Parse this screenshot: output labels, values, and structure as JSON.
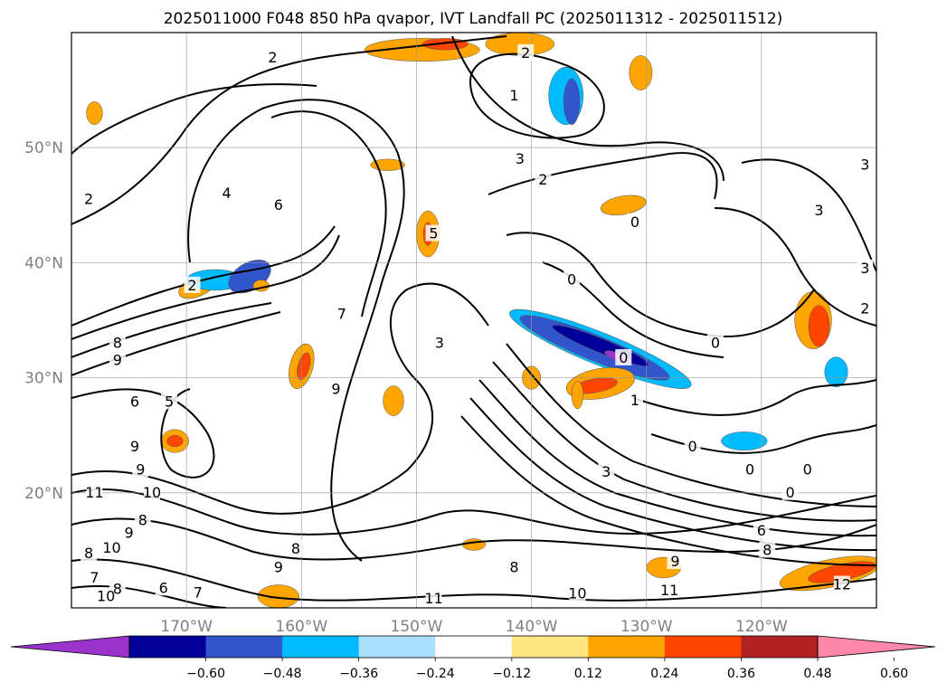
{
  "chart_data": {
    "type": "heatmap",
    "title": "2025011000 F048 850 hPa qvapor, IVT Landfall PC (2025011312 - 2025011512)",
    "projection": "map",
    "grid": true,
    "lon_range": [
      -180,
      -110
    ],
    "lat_range": [
      10,
      60
    ],
    "x_ticks": [
      {
        "value": -170,
        "label": "170°W"
      },
      {
        "value": -160,
        "label": "160°W"
      },
      {
        "value": -150,
        "label": "150°W"
      },
      {
        "value": -140,
        "label": "140°W"
      },
      {
        "value": -130,
        "label": "130°W"
      },
      {
        "value": -120,
        "label": "120°W"
      }
    ],
    "y_ticks": [
      {
        "value": 20,
        "label": "20°N"
      },
      {
        "value": 30,
        "label": "30°N"
      },
      {
        "value": 40,
        "label": "40°N"
      },
      {
        "value": 50,
        "label": "50°N"
      }
    ],
    "colorbar": {
      "orientation": "horizontal",
      "extend": "both",
      "levels": [
        -0.6,
        -0.48,
        -0.36,
        -0.24,
        -0.12,
        0.12,
        0.24,
        0.36,
        0.48,
        0.6
      ],
      "tick_labels": [
        "−0.60",
        "−0.48",
        "−0.36",
        "−0.24",
        "−0.12",
        "0.12",
        "0.24",
        "0.36",
        "0.48",
        "0.60"
      ],
      "colors": [
        "#9933cc",
        "#000099",
        "#3355cc",
        "#00bbff",
        "#aae0ff",
        "#ffffff",
        "#ffe680",
        "#ffa500",
        "#ff4500",
        "#b22222",
        "#ff88aa"
      ]
    },
    "contour_labels": [
      {
        "text": "2",
        "lon": -178.5,
        "lat": 45.5
      },
      {
        "text": "2",
        "lon": -162.5,
        "lat": 57.8
      },
      {
        "text": "2",
        "lon": -140.5,
        "lat": 58.2
      },
      {
        "text": "1",
        "lon": -141.5,
        "lat": 54.5
      },
      {
        "text": "3",
        "lon": -141.0,
        "lat": 49.0
      },
      {
        "text": "2",
        "lon": -139.0,
        "lat": 47.2
      },
      {
        "text": "4",
        "lon": -166.5,
        "lat": 46.0
      },
      {
        "text": "6",
        "lon": -162.0,
        "lat": 45.0
      },
      {
        "text": "5",
        "lon": -148.5,
        "lat": 42.5
      },
      {
        "text": "2",
        "lon": -169.5,
        "lat": 38.0
      },
      {
        "text": "7",
        "lon": -156.5,
        "lat": 35.5
      },
      {
        "text": "8",
        "lon": -176.0,
        "lat": 33.0
      },
      {
        "text": "9",
        "lon": -176.0,
        "lat": 31.5
      },
      {
        "text": "3",
        "lon": -148.0,
        "lat": 33.0
      },
      {
        "text": "9",
        "lon": -157.0,
        "lat": 29.0
      },
      {
        "text": "0",
        "lon": -136.5,
        "lat": 38.5
      },
      {
        "text": "0",
        "lon": -131.0,
        "lat": 43.5
      },
      {
        "text": "3",
        "lon": -111.0,
        "lat": 48.5
      },
      {
        "text": "3",
        "lon": -115.0,
        "lat": 44.5
      },
      {
        "text": "3",
        "lon": -111.0,
        "lat": 39.5
      },
      {
        "text": "2",
        "lon": -111.0,
        "lat": 36.0
      },
      {
        "text": "0",
        "lon": -132.0,
        "lat": 31.7
      },
      {
        "text": "0",
        "lon": -124.0,
        "lat": 33.0
      },
      {
        "text": "1",
        "lon": -131.0,
        "lat": 28.0
      },
      {
        "text": "0",
        "lon": -126.0,
        "lat": 24.0
      },
      {
        "text": "0",
        "lon": -121.0,
        "lat": 22.0
      },
      {
        "text": "0",
        "lon": -116.0,
        "lat": 22.0
      },
      {
        "text": "0",
        "lon": -117.5,
        "lat": 20.0
      },
      {
        "text": "3",
        "lon": -133.5,
        "lat": 21.8
      },
      {
        "text": "6",
        "lon": -120.0,
        "lat": 16.7
      },
      {
        "text": "8",
        "lon": -119.5,
        "lat": 15.0
      },
      {
        "text": "9",
        "lon": -127.5,
        "lat": 14.0
      },
      {
        "text": "11",
        "lon": -128.0,
        "lat": 11.5
      },
      {
        "text": "12",
        "lon": -113.0,
        "lat": 12.0
      },
      {
        "text": "10",
        "lon": -136.0,
        "lat": 11.2
      },
      {
        "text": "11",
        "lon": -148.5,
        "lat": 10.8
      },
      {
        "text": "8",
        "lon": -141.5,
        "lat": 13.5
      },
      {
        "text": "5",
        "lon": -171.5,
        "lat": 27.9
      },
      {
        "text": "6",
        "lon": -174.5,
        "lat": 27.9
      },
      {
        "text": "9",
        "lon": -174.5,
        "lat": 24.0
      },
      {
        "text": "9",
        "lon": -174.0,
        "lat": 22.0
      },
      {
        "text": "10",
        "lon": -173.0,
        "lat": 20.0
      },
      {
        "text": "11",
        "lon": -178.0,
        "lat": 20.0
      },
      {
        "text": "8",
        "lon": -173.8,
        "lat": 17.6
      },
      {
        "text": "9",
        "lon": -175.0,
        "lat": 16.5
      },
      {
        "text": "10",
        "lon": -176.5,
        "lat": 15.2
      },
      {
        "text": "8",
        "lon": -178.5,
        "lat": 14.7
      },
      {
        "text": "9",
        "lon": -162.0,
        "lat": 13.5
      },
      {
        "text": "8",
        "lon": -160.5,
        "lat": 15.1
      },
      {
        "text": "7",
        "lon": -178.0,
        "lat": 12.6
      },
      {
        "text": "8",
        "lon": -176.0,
        "lat": 11.6
      },
      {
        "text": "6",
        "lon": -172.0,
        "lat": 11.7
      },
      {
        "text": "7",
        "lon": -169.0,
        "lat": 11.3
      },
      {
        "text": "10",
        "lon": -177.0,
        "lat": 11.0
      }
    ],
    "fill_regions": [
      {
        "level": 0.3,
        "lon": -169.0,
        "lat": 38.0,
        "rlon": 1.8,
        "rlat": 0.9,
        "rot": -25
      },
      {
        "level": -0.3,
        "lon": -167.5,
        "lat": 38.5,
        "rlon": 2.5,
        "rlat": 0.9,
        "rot": 0
      },
      {
        "level": -0.42,
        "lon": -164.5,
        "lat": 38.8,
        "rlon": 2.0,
        "rlat": 1.2,
        "rot": -30
      },
      {
        "level": -0.3,
        "lon": -134.0,
        "lat": 32.5,
        "rlon": 8.5,
        "rlat": 1.4,
        "rot": 22
      },
      {
        "level": -0.42,
        "lon": -134.5,
        "lat": 32.6,
        "rlon": 7.0,
        "rlat": 1.1,
        "rot": 22
      },
      {
        "level": -0.54,
        "lon": -134.0,
        "lat": 32.8,
        "rlon": 4.5,
        "rlat": 0.6,
        "rot": 22
      },
      {
        "level": -0.66,
        "lon": -132.5,
        "lat": 31.8,
        "rlon": 1.2,
        "rlat": 0.35,
        "rot": 22
      },
      {
        "level": -0.3,
        "lon": -137.0,
        "lat": 54.5,
        "rlon": 1.5,
        "rlat": 2.5,
        "rot": 0
      },
      {
        "level": -0.42,
        "lon": -136.5,
        "lat": 54.0,
        "rlon": 0.7,
        "rlat": 2.0,
        "rot": 0
      },
      {
        "level": 0.3,
        "lon": -149.5,
        "lat": 58.5,
        "rlon": 5.0,
        "rlat": 1.0,
        "rot": 0
      },
      {
        "level": 0.3,
        "lon": -141.0,
        "lat": 59.0,
        "rlon": 3.0,
        "rlat": 1.0,
        "rot": 0
      },
      {
        "level": 0.42,
        "lon": -147.5,
        "lat": 59.0,
        "rlon": 2.0,
        "rlat": 0.5,
        "rot": 0
      },
      {
        "level": 0.3,
        "lon": -130.5,
        "lat": 56.5,
        "rlon": 1.0,
        "rlat": 1.5,
        "rot": 0
      },
      {
        "level": 0.3,
        "lon": -178.0,
        "lat": 53.0,
        "rlon": 0.7,
        "rlat": 1.0,
        "rot": 0
      },
      {
        "level": 0.3,
        "lon": -160.0,
        "lat": 31.0,
        "rlon": 1.0,
        "rlat": 2.0,
        "rot": 15
      },
      {
        "level": 0.42,
        "lon": -159.8,
        "lat": 31.0,
        "rlon": 0.5,
        "rlat": 1.2,
        "rot": 15
      },
      {
        "level": 0.3,
        "lon": -171.0,
        "lat": 24.5,
        "rlon": 1.2,
        "rlat": 1.0,
        "rot": 0
      },
      {
        "level": 0.42,
        "lon": -171.0,
        "lat": 24.5,
        "rlon": 0.7,
        "rlat": 0.5,
        "rot": 0
      },
      {
        "level": 0.3,
        "lon": -152.0,
        "lat": 28.0,
        "rlon": 0.9,
        "rlat": 1.3,
        "rot": 0
      },
      {
        "level": 0.3,
        "lon": -149.0,
        "lat": 42.5,
        "rlon": 1.0,
        "rlat": 2.0,
        "rot": 0
      },
      {
        "level": 0.42,
        "lon": -149.0,
        "lat": 42.5,
        "rlon": 0.4,
        "rlat": 1.0,
        "rot": 0
      },
      {
        "level": 0.3,
        "lon": -132.0,
        "lat": 45.0,
        "rlon": 2.0,
        "rlat": 0.8,
        "rot": -10
      },
      {
        "level": 0.3,
        "lon": -134.0,
        "lat": 29.5,
        "rlon": 3.0,
        "rlat": 1.3,
        "rot": -10
      },
      {
        "level": 0.42,
        "lon": -134.5,
        "lat": 29.3,
        "rlon": 2.0,
        "rlat": 0.6,
        "rot": -10
      },
      {
        "level": 0.3,
        "lon": -115.5,
        "lat": 35.0,
        "rlon": 1.6,
        "rlat": 2.5,
        "rot": 0
      },
      {
        "level": 0.42,
        "lon": -115.0,
        "lat": 34.5,
        "rlon": 0.9,
        "rlat": 1.8,
        "rot": 0
      },
      {
        "level": -0.3,
        "lon": -113.5,
        "lat": 30.5,
        "rlon": 1.0,
        "rlat": 1.3,
        "rot": 0
      },
      {
        "level": -0.3,
        "lon": -121.5,
        "lat": 24.5,
        "rlon": 2.0,
        "rlat": 0.8,
        "rot": 0
      },
      {
        "level": 0.3,
        "lon": -128.5,
        "lat": 13.5,
        "rlon": 1.5,
        "rlat": 0.9,
        "rot": 0
      },
      {
        "level": 0.3,
        "lon": -114.0,
        "lat": 13.0,
        "rlon": 4.5,
        "rlat": 1.2,
        "rot": -12
      },
      {
        "level": 0.42,
        "lon": -113.0,
        "lat": 13.1,
        "rlon": 3.0,
        "rlat": 0.7,
        "rot": -12
      },
      {
        "level": 0.3,
        "lon": -162.0,
        "lat": 11.0,
        "rlon": 1.8,
        "rlat": 1.0,
        "rot": 0
      },
      {
        "level": 0.3,
        "lon": -140.0,
        "lat": 30.0,
        "rlon": 0.8,
        "rlat": 1.0,
        "rot": 0
      },
      {
        "level": 0.3,
        "lon": -145.0,
        "lat": 15.5,
        "rlon": 1.0,
        "rlat": 0.5,
        "rot": 0
      },
      {
        "level": 0.3,
        "lon": -136.0,
        "lat": 28.5,
        "rlon": 0.5,
        "rlat": 1.2,
        "rot": 0
      },
      {
        "level": 0.3,
        "lon": -163.5,
        "lat": 38.0,
        "rlon": 0.7,
        "rlat": 0.5,
        "rot": 0
      },
      {
        "level": 0.3,
        "lon": -152.5,
        "lat": 48.5,
        "rlon": 1.5,
        "rlat": 0.5,
        "rot": 0
      }
    ]
  }
}
